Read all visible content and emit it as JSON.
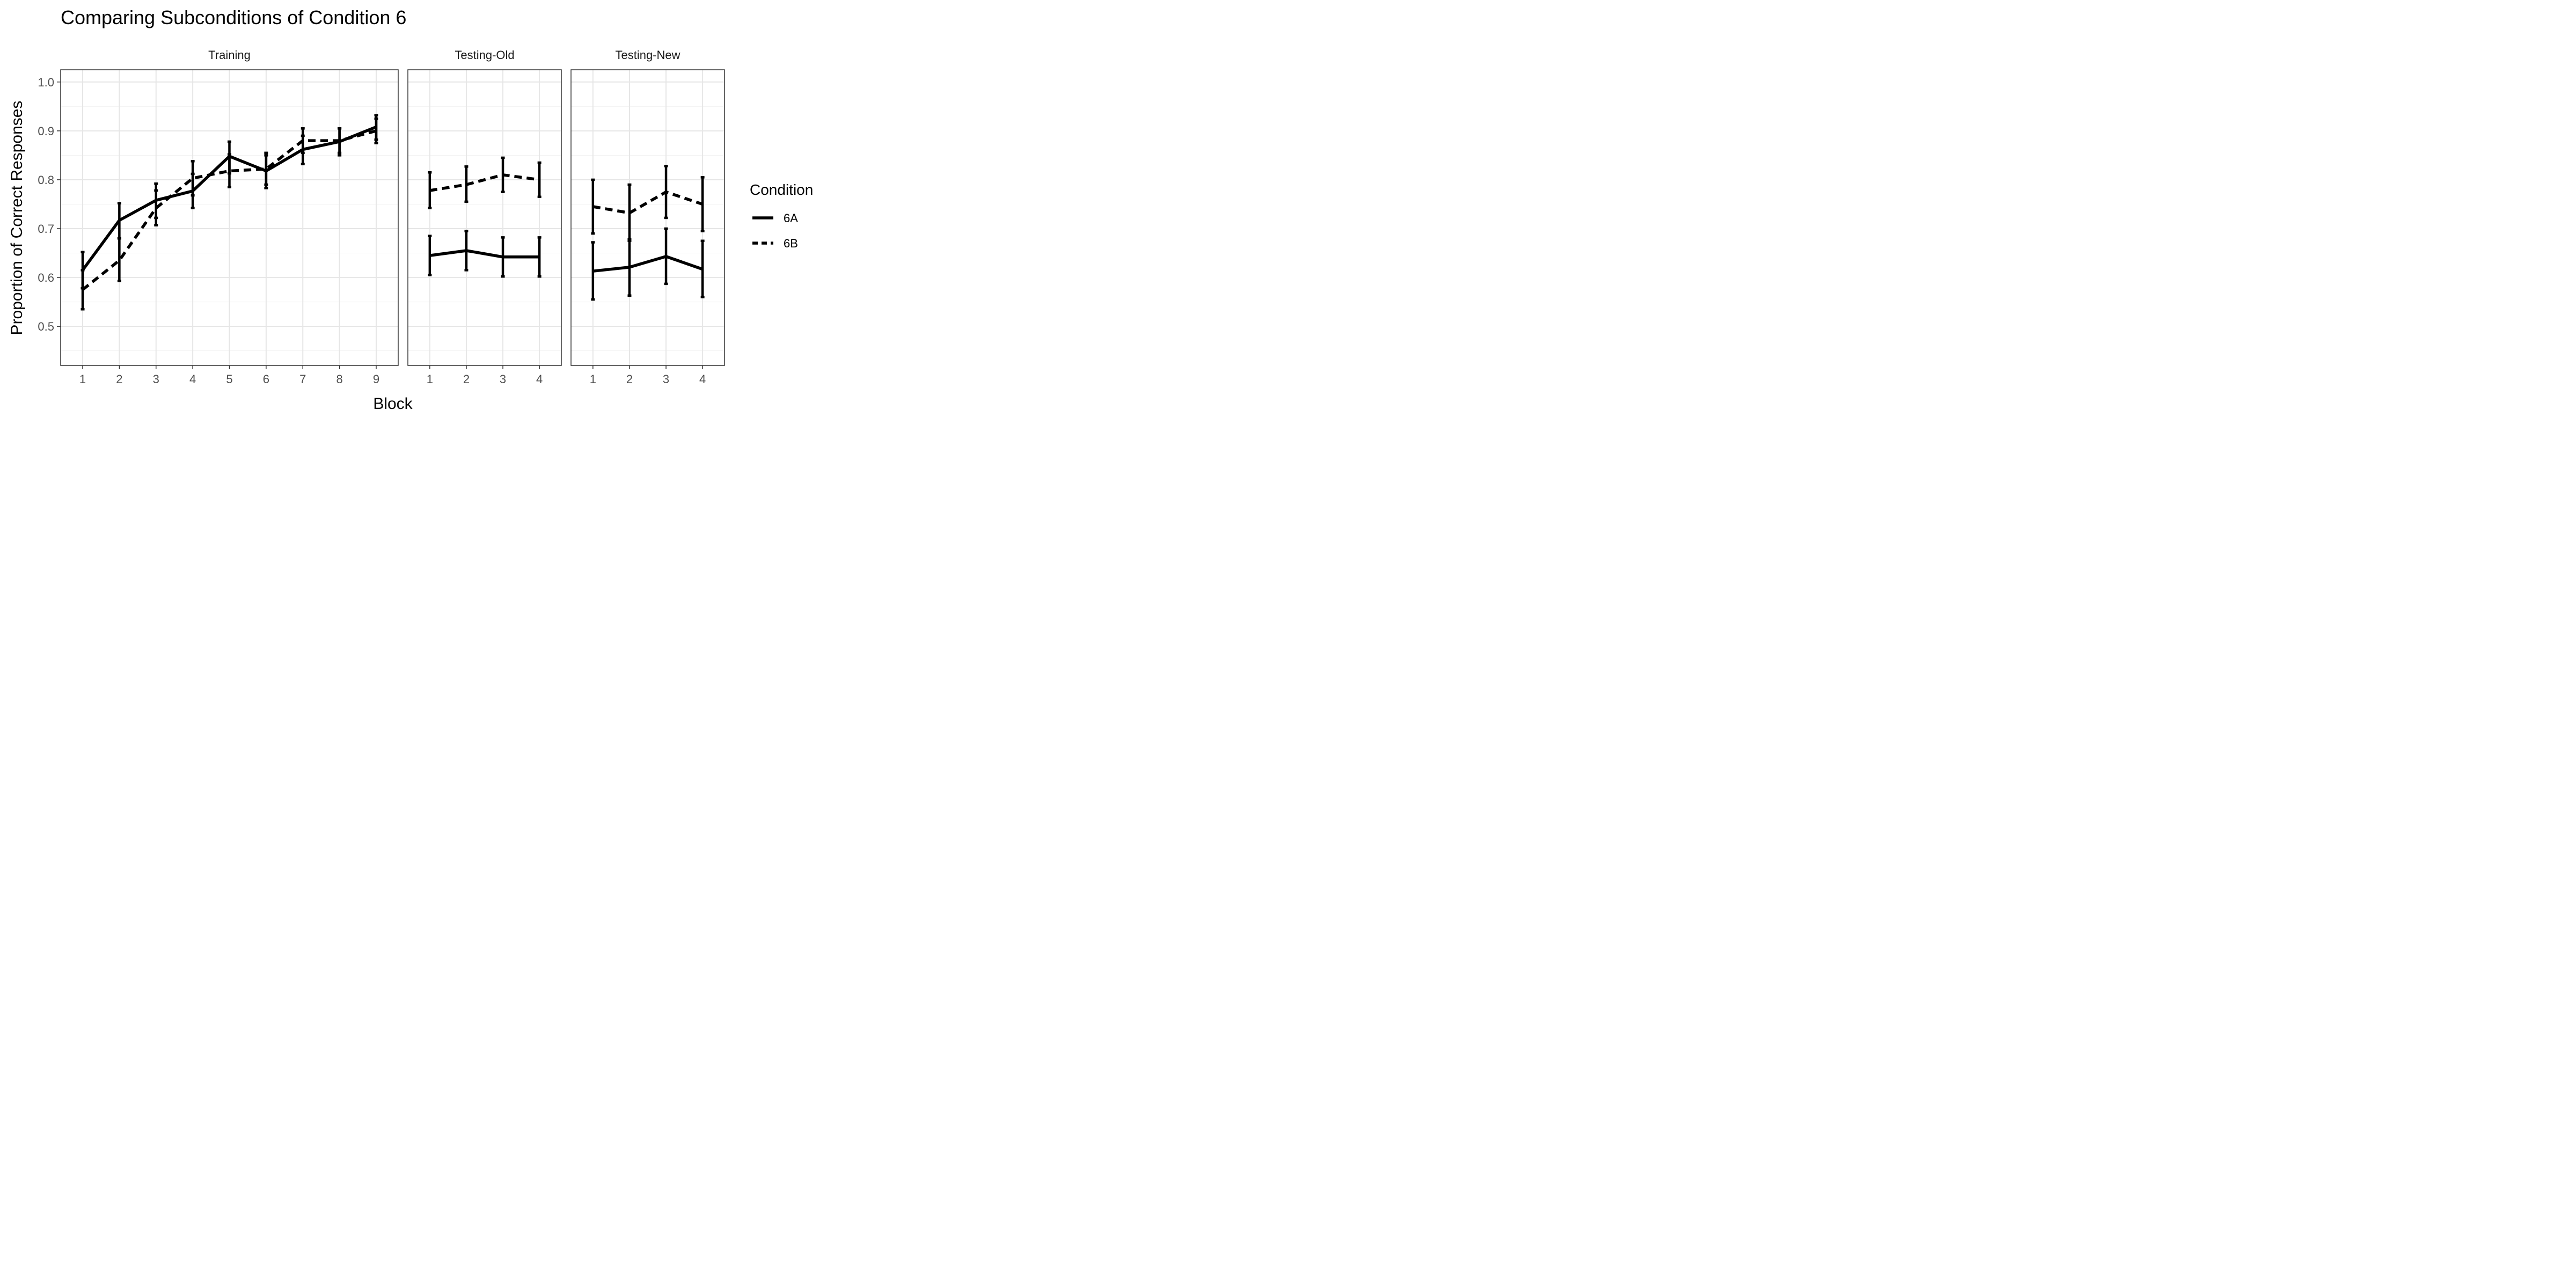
{
  "chart_data": {
    "type": "line",
    "title": "Comparing Subconditions of Condition 6",
    "xlabel": "Block",
    "ylabel": "Proportion of Correct Responses",
    "ylim": [
      0.42,
      1.025
    ],
    "y_ticks": [
      0.5,
      0.6,
      0.7,
      0.8,
      0.9,
      1.0
    ],
    "y_tick_labels": [
      "0.5",
      "0.6",
      "0.7",
      "0.8",
      "0.9",
      "1.0"
    ],
    "grid": true,
    "legend": {
      "title": "Condition",
      "position": "right",
      "entries": [
        {
          "label": "6A",
          "linetype": "solid"
        },
        {
          "label": "6B",
          "linetype": "dashed"
        }
      ]
    },
    "panels": [
      {
        "title": "Training",
        "x": [
          1,
          2,
          3,
          4,
          5,
          6,
          7,
          8,
          9
        ],
        "series": [
          {
            "name": "6A",
            "values": [
              0.615,
              0.717,
              0.758,
              0.777,
              0.848,
              0.818,
              0.862,
              0.878,
              0.908
            ],
            "lower": [
              0.578,
              0.68,
              0.722,
              0.742,
              0.813,
              0.783,
              0.832,
              0.85,
              0.882
            ],
            "upper": [
              0.652,
              0.752,
              0.792,
              0.812,
              0.878,
              0.85,
              0.89,
              0.905,
              0.932
            ]
          },
          {
            "name": "6B",
            "values": [
              0.575,
              0.635,
              0.742,
              0.803,
              0.818,
              0.822,
              0.88,
              0.88,
              0.9
            ],
            "lower": [
              0.535,
              0.593,
              0.707,
              0.768,
              0.785,
              0.79,
              0.855,
              0.855,
              0.875
            ],
            "upper": [
              0.615,
              0.68,
              0.778,
              0.838,
              0.852,
              0.855,
              0.905,
              0.905,
              0.925
            ]
          }
        ]
      },
      {
        "title": "Testing-Old",
        "x": [
          1,
          2,
          3,
          4
        ],
        "series": [
          {
            "name": "6A",
            "values": [
              0.645,
              0.655,
              0.642,
              0.642
            ],
            "lower": [
              0.605,
              0.615,
              0.602,
              0.602
            ],
            "upper": [
              0.685,
              0.695,
              0.682,
              0.682
            ]
          },
          {
            "name": "6B",
            "values": [
              0.778,
              0.79,
              0.81,
              0.8
            ],
            "lower": [
              0.742,
              0.755,
              0.775,
              0.765
            ],
            "upper": [
              0.815,
              0.827,
              0.845,
              0.835
            ]
          }
        ]
      },
      {
        "title": "Testing-New",
        "x": [
          1,
          2,
          3,
          4
        ],
        "series": [
          {
            "name": "6A",
            "values": [
              0.613,
              0.621,
              0.643,
              0.617
            ],
            "lower": [
              0.555,
              0.563,
              0.587,
              0.56
            ],
            "upper": [
              0.672,
              0.678,
              0.7,
              0.675
            ]
          },
          {
            "name": "6B",
            "values": [
              0.745,
              0.732,
              0.775,
              0.75
            ],
            "lower": [
              0.69,
              0.675,
              0.722,
              0.695
            ],
            "upper": [
              0.8,
              0.79,
              0.828,
              0.805
            ]
          }
        ]
      }
    ]
  }
}
